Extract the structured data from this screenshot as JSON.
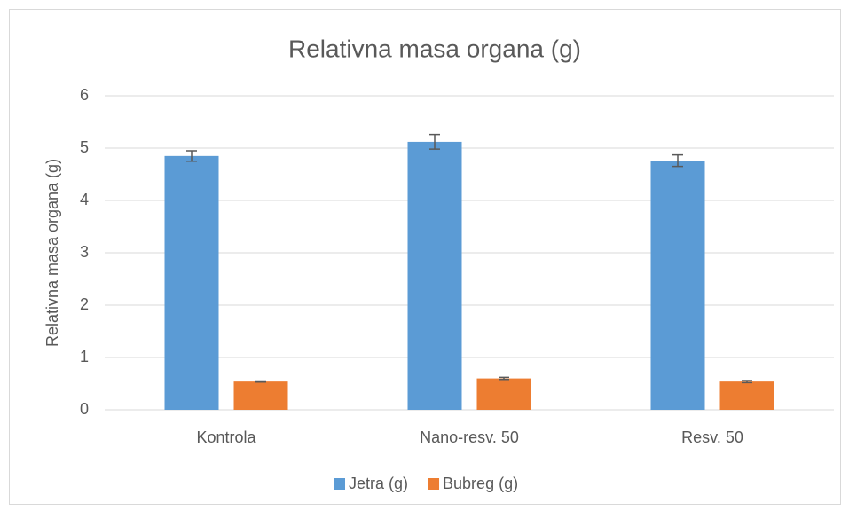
{
  "chart_data": {
    "type": "bar",
    "title": "Relativna masa organa (g)",
    "y_label": "Relativna masa organa (g)",
    "categories": [
      "Kontrola",
      "Nano-resv. 50",
      "Resv. 50"
    ],
    "series": [
      {
        "name": "Jetra (g)",
        "color": "#5b9bd5",
        "values": [
          4.85,
          5.12,
          4.76
        ],
        "errors": [
          0.1,
          0.14,
          0.11
        ]
      },
      {
        "name": "Bubreg (g)",
        "color": "#ed7d31",
        "values": [
          0.54,
          0.6,
          0.54
        ],
        "errors": [
          0.01,
          0.02,
          0.02
        ]
      }
    ],
    "ylim": [
      0,
      6
    ],
    "yticks": [
      0,
      1,
      2,
      3,
      4,
      5,
      6
    ],
    "grid": true,
    "legend": "bottom"
  }
}
